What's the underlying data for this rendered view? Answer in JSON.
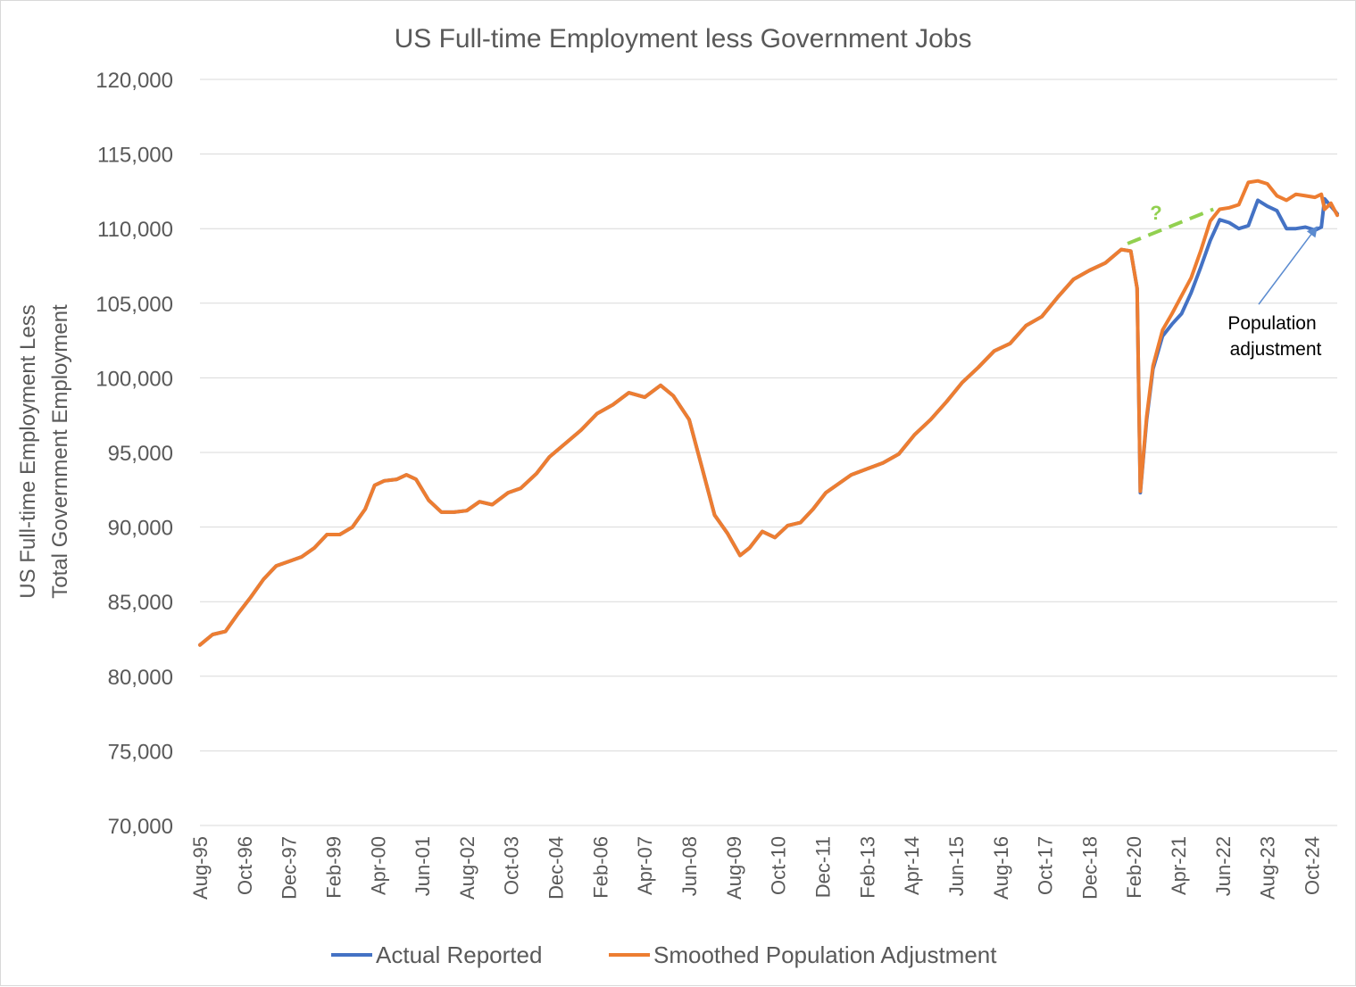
{
  "chart_data": {
    "type": "line",
    "title": "US Full-time Employment less Government Jobs",
    "ylabel_lines": [
      "US Full-time Employment Less",
      "Total Government Employment"
    ],
    "ylim": [
      70000,
      120000
    ],
    "yticks": [
      70000,
      75000,
      80000,
      85000,
      90000,
      95000,
      100000,
      105000,
      110000,
      115000,
      120000
    ],
    "ytick_labels": [
      "70,000",
      "75,000",
      "80,000",
      "85,000",
      "90,000",
      "95,000",
      "100,000",
      "105,000",
      "110,000",
      "115,000",
      "120,000"
    ],
    "x_start": "1995-08",
    "x_end": "2025-06",
    "xtick_labels": [
      "Aug-95",
      "Oct-96",
      "Dec-97",
      "Feb-99",
      "Apr-00",
      "Jun-01",
      "Aug-02",
      "Oct-03",
      "Dec-04",
      "Feb-06",
      "Apr-07",
      "Jun-08",
      "Aug-09",
      "Oct-10",
      "Dec-11",
      "Feb-13",
      "Apr-14",
      "Jun-15",
      "Aug-16",
      "Oct-17",
      "Dec-18",
      "Feb-20",
      "Apr-21",
      "Jun-22",
      "Aug-23",
      "Oct-24"
    ],
    "grid": true,
    "legend_position": "bottom",
    "series": [
      {
        "name": "Actual Reported",
        "color": "#4472C4",
        "points": [
          [
            "1995-08",
            82100
          ],
          [
            "1995-12",
            82800
          ],
          [
            "1996-04",
            83000
          ],
          [
            "1996-08",
            84200
          ],
          [
            "1996-12",
            85300
          ],
          [
            "1997-04",
            86500
          ],
          [
            "1997-08",
            87400
          ],
          [
            "1997-12",
            87700
          ],
          [
            "1998-04",
            88000
          ],
          [
            "1998-08",
            88600
          ],
          [
            "1998-12",
            89500
          ],
          [
            "1999-04",
            89500
          ],
          [
            "1999-08",
            90000
          ],
          [
            "1999-12",
            91200
          ],
          [
            "2000-03",
            92800
          ],
          [
            "2000-06",
            93100
          ],
          [
            "2000-10",
            93200
          ],
          [
            "2001-01",
            93500
          ],
          [
            "2001-04",
            93200
          ],
          [
            "2001-08",
            91800
          ],
          [
            "2001-12",
            91000
          ],
          [
            "2002-04",
            91000
          ],
          [
            "2002-08",
            91100
          ],
          [
            "2002-12",
            91700
          ],
          [
            "2003-04",
            91500
          ],
          [
            "2003-09",
            92300
          ],
          [
            "2004-01",
            92600
          ],
          [
            "2004-06",
            93600
          ],
          [
            "2004-10",
            94700
          ],
          [
            "2005-03",
            95600
          ],
          [
            "2005-08",
            96500
          ],
          [
            "2006-01",
            97600
          ],
          [
            "2006-06",
            98200
          ],
          [
            "2006-11",
            99000
          ],
          [
            "2007-04",
            98700
          ],
          [
            "2007-09",
            99500
          ],
          [
            "2008-01",
            98800
          ],
          [
            "2008-06",
            97200
          ],
          [
            "2008-10",
            94000
          ],
          [
            "2009-02",
            90800
          ],
          [
            "2009-06",
            89600
          ],
          [
            "2009-10",
            88100
          ],
          [
            "2010-01",
            88600
          ],
          [
            "2010-05",
            89700
          ],
          [
            "2010-09",
            89300
          ],
          [
            "2011-01",
            90100
          ],
          [
            "2011-05",
            90300
          ],
          [
            "2011-09",
            91200
          ],
          [
            "2012-01",
            92300
          ],
          [
            "2012-05",
            92900
          ],
          [
            "2012-09",
            93500
          ],
          [
            "2013-02",
            93900
          ],
          [
            "2013-07",
            94300
          ],
          [
            "2013-12",
            94900
          ],
          [
            "2014-05",
            96200
          ],
          [
            "2014-10",
            97200
          ],
          [
            "2015-03",
            98400
          ],
          [
            "2015-08",
            99700
          ],
          [
            "2016-01",
            100700
          ],
          [
            "2016-06",
            101800
          ],
          [
            "2016-11",
            102300
          ],
          [
            "2017-04",
            103500
          ],
          [
            "2017-09",
            104100
          ],
          [
            "2018-02",
            105400
          ],
          [
            "2018-07",
            106600
          ],
          [
            "2018-12",
            107200
          ],
          [
            "2019-05",
            107700
          ],
          [
            "2019-10",
            108600
          ],
          [
            "2020-01",
            108500
          ],
          [
            "2020-03",
            106000
          ],
          [
            "2020-04",
            92300
          ],
          [
            "2020-06",
            97200
          ],
          [
            "2020-08",
            100600
          ],
          [
            "2020-11",
            102800
          ],
          [
            "2021-02",
            103600
          ],
          [
            "2021-05",
            104300
          ],
          [
            "2021-08",
            105700
          ],
          [
            "2021-11",
            107400
          ],
          [
            "2022-02",
            109200
          ],
          [
            "2022-05",
            110600
          ],
          [
            "2022-08",
            110400
          ],
          [
            "2022-11",
            110000
          ],
          [
            "2023-02",
            110200
          ],
          [
            "2023-05",
            111900
          ],
          [
            "2023-08",
            111500
          ],
          [
            "2023-11",
            111200
          ],
          [
            "2024-02",
            110000
          ],
          [
            "2024-05",
            110000
          ],
          [
            "2024-08",
            110100
          ],
          [
            "2024-11",
            109900
          ],
          [
            "2025-01",
            110100
          ],
          [
            "2025-02",
            112000
          ],
          [
            "2025-04",
            111500
          ],
          [
            "2025-06",
            111000
          ]
        ]
      },
      {
        "name": "Smoothed Population Adjustment",
        "color": "#ED7D31",
        "points": [
          [
            "1995-08",
            82100
          ],
          [
            "1995-12",
            82800
          ],
          [
            "1996-04",
            83000
          ],
          [
            "1996-08",
            84200
          ],
          [
            "1996-12",
            85300
          ],
          [
            "1997-04",
            86500
          ],
          [
            "1997-08",
            87400
          ],
          [
            "1997-12",
            87700
          ],
          [
            "1998-04",
            88000
          ],
          [
            "1998-08",
            88600
          ],
          [
            "1998-12",
            89500
          ],
          [
            "1999-04",
            89500
          ],
          [
            "1999-08",
            90000
          ],
          [
            "1999-12",
            91200
          ],
          [
            "2000-03",
            92800
          ],
          [
            "2000-06",
            93100
          ],
          [
            "2000-10",
            93200
          ],
          [
            "2001-01",
            93500
          ],
          [
            "2001-04",
            93200
          ],
          [
            "2001-08",
            91800
          ],
          [
            "2001-12",
            91000
          ],
          [
            "2002-04",
            91000
          ],
          [
            "2002-08",
            91100
          ],
          [
            "2002-12",
            91700
          ],
          [
            "2003-04",
            91500
          ],
          [
            "2003-09",
            92300
          ],
          [
            "2004-01",
            92600
          ],
          [
            "2004-06",
            93600
          ],
          [
            "2004-10",
            94700
          ],
          [
            "2005-03",
            95600
          ],
          [
            "2005-08",
            96500
          ],
          [
            "2006-01",
            97600
          ],
          [
            "2006-06",
            98200
          ],
          [
            "2006-11",
            99000
          ],
          [
            "2007-04",
            98700
          ],
          [
            "2007-09",
            99500
          ],
          [
            "2008-01",
            98800
          ],
          [
            "2008-06",
            97200
          ],
          [
            "2008-10",
            94000
          ],
          [
            "2009-02",
            90800
          ],
          [
            "2009-06",
            89600
          ],
          [
            "2009-10",
            88100
          ],
          [
            "2010-01",
            88600
          ],
          [
            "2010-05",
            89700
          ],
          [
            "2010-09",
            89300
          ],
          [
            "2011-01",
            90100
          ],
          [
            "2011-05",
            90300
          ],
          [
            "2011-09",
            91200
          ],
          [
            "2012-01",
            92300
          ],
          [
            "2012-05",
            92900
          ],
          [
            "2012-09",
            93500
          ],
          [
            "2013-02",
            93900
          ],
          [
            "2013-07",
            94300
          ],
          [
            "2013-12",
            94900
          ],
          [
            "2014-05",
            96200
          ],
          [
            "2014-10",
            97200
          ],
          [
            "2015-03",
            98400
          ],
          [
            "2015-08",
            99700
          ],
          [
            "2016-01",
            100700
          ],
          [
            "2016-06",
            101800
          ],
          [
            "2016-11",
            102300
          ],
          [
            "2017-04",
            103500
          ],
          [
            "2017-09",
            104100
          ],
          [
            "2018-02",
            105400
          ],
          [
            "2018-07",
            106600
          ],
          [
            "2018-12",
            107200
          ],
          [
            "2019-05",
            107700
          ],
          [
            "2019-10",
            108600
          ],
          [
            "2020-01",
            108500
          ],
          [
            "2020-03",
            106000
          ],
          [
            "2020-04",
            92400
          ],
          [
            "2020-06",
            97400
          ],
          [
            "2020-08",
            100800
          ],
          [
            "2020-11",
            103200
          ],
          [
            "2021-02",
            104300
          ],
          [
            "2021-05",
            105500
          ],
          [
            "2021-08",
            106700
          ],
          [
            "2021-11",
            108500
          ],
          [
            "2022-02",
            110500
          ],
          [
            "2022-05",
            111300
          ],
          [
            "2022-08",
            111400
          ],
          [
            "2022-11",
            111600
          ],
          [
            "2023-02",
            113100
          ],
          [
            "2023-05",
            113200
          ],
          [
            "2023-08",
            113000
          ],
          [
            "2023-11",
            112200
          ],
          [
            "2024-02",
            111900
          ],
          [
            "2024-05",
            112300
          ],
          [
            "2024-08",
            112200
          ],
          [
            "2024-11",
            112100
          ],
          [
            "2025-01",
            112300
          ],
          [
            "2025-02",
            111300
          ],
          [
            "2025-04",
            111700
          ],
          [
            "2025-06",
            110900
          ]
        ]
      }
    ],
    "trend_line": {
      "color": "#92D050",
      "start": [
        "2019-12",
        109000
      ],
      "end": [
        "2022-03",
        111300
      ],
      "label": "?"
    },
    "annotation": {
      "lines": [
        "Population",
        "adjustment"
      ],
      "arrow_to": [
        "2024-12",
        110800
      ]
    }
  }
}
